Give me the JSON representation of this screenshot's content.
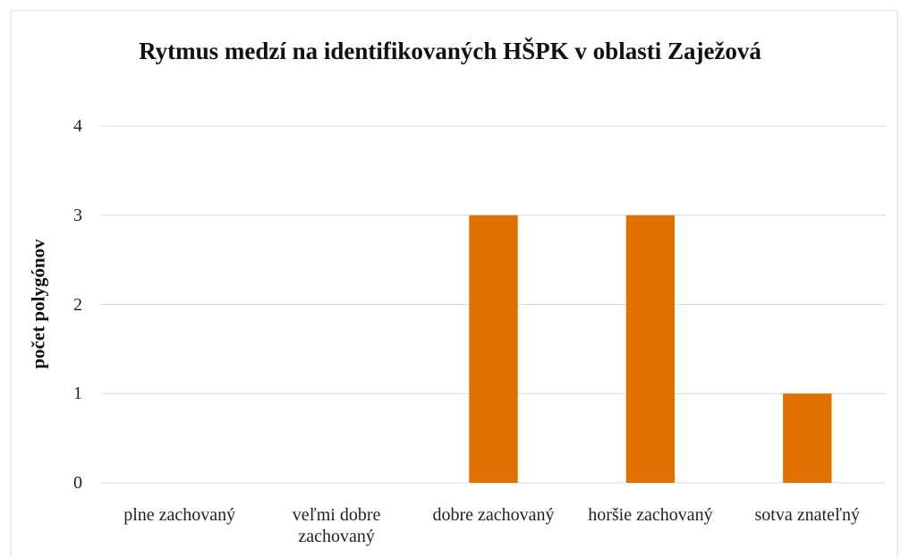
{
  "chart_data": {
    "type": "bar",
    "title": "Rytmus medzí na identifikovaných HŠPK v oblasti Zaježová",
    "y_label": "počet polygónov",
    "categories": [
      "plne zachovaný",
      "veľmi dobre zachovaný",
      "dobre zachovaný",
      "horšie zachovaný",
      "sotva znateľný"
    ],
    "values": [
      0,
      0,
      3,
      3,
      1
    ],
    "color": "#e07000",
    "ylim": [
      0,
      4
    ],
    "yticks": [
      0,
      1,
      2,
      3,
      4
    ],
    "grid": true
  }
}
